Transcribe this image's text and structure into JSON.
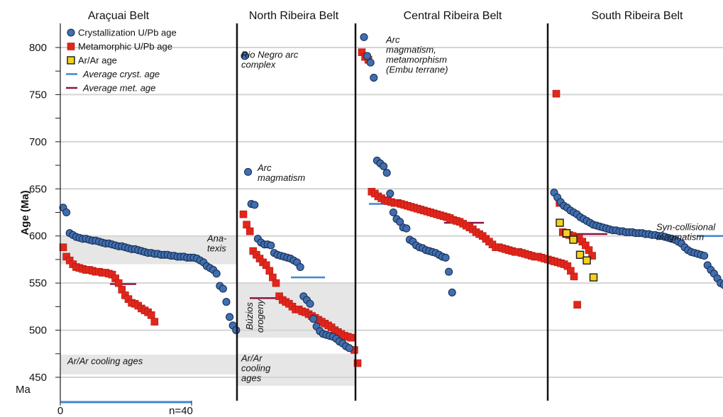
{
  "chart_data": {
    "type": "scatter",
    "ylabel": "Age (Ma)",
    "y_unit_label": "Ma",
    "ylim": [
      440,
      825
    ],
    "yticks": [
      450,
      500,
      550,
      600,
      650,
      700,
      750,
      800
    ],
    "count_axis_labels": [
      "0",
      "n=40"
    ],
    "colors": {
      "crystallization": "#3f6fb0",
      "metamorphic": "#e2261c",
      "arar": "#f2d21d",
      "avg_cryst": "#3f86d2",
      "avg_met": "#8a1548",
      "band": "#e6e6e6"
    },
    "legend": [
      {
        "key": "crystallization",
        "label": "Crystallization U/Pb age"
      },
      {
        "key": "metamorphic",
        "label": "Metamorphic U/Pb age"
      },
      {
        "key": "arar",
        "label": "Ar/Ar age"
      },
      {
        "key": "avg_cryst",
        "label": "Average cryst. age"
      },
      {
        "key": "avg_met",
        "label": "Average met. age"
      }
    ],
    "belts": [
      {
        "name": "Araçuai Belt",
        "bands": [
          [
            570,
            600
          ],
          [
            453,
            474
          ]
        ],
        "annotations": [
          {
            "lines": [
              "Ana-",
              "texis"
            ],
            "age": 594
          },
          {
            "lines": [
              "Ar/Ar cooling ages"
            ],
            "age": 464
          }
        ],
        "crystallization": [
          630,
          625,
          603,
          601,
          599,
          598,
          597,
          597,
          596,
          595,
          595,
          594,
          593,
          592,
          592,
          591,
          590,
          589,
          589,
          588,
          587,
          586,
          586,
          585,
          584,
          583,
          582,
          582,
          581,
          581,
          580,
          580,
          580,
          579,
          579,
          578,
          578,
          578,
          577,
          577,
          577,
          576,
          574,
          572,
          568,
          566,
          564,
          560,
          547,
          544,
          530,
          514,
          505,
          500
        ],
        "metamorphic": [
          588,
          578,
          574,
          570,
          567,
          566,
          565,
          564,
          564,
          563,
          562,
          562,
          561,
          561,
          560,
          559,
          555,
          550,
          543,
          537,
          533,
          529,
          528,
          526,
          523,
          521,
          519,
          516,
          509
        ],
        "avg_cryst": 578,
        "avg_met": 549
      },
      {
        "name": "North Ribeira Belt",
        "bands": [
          [
            492,
            550
          ],
          [
            441,
            475
          ]
        ],
        "annotations": [
          {
            "lines": [
              "Rio Negro arc",
              "complex"
            ],
            "age": 789
          },
          {
            "lines": [
              "Arc",
              "magmatism"
            ],
            "age": 669
          },
          {
            "lines": [
              "Búzios",
              "orogeny"
            ],
            "age": 515,
            "rotate": true
          },
          {
            "lines": [
              "Ar/Ar",
              "cooling",
              "ages"
            ],
            "age": 467
          }
        ],
        "crystallization": [
          791,
          668,
          634,
          633,
          597,
          593,
          591,
          591,
          590,
          582,
          580,
          579,
          578,
          577,
          576,
          574,
          572,
          567,
          536,
          532,
          528,
          512,
          504,
          499,
          496,
          495,
          494,
          493,
          491,
          488,
          486,
          483,
          481
        ],
        "metamorphic": [
          623,
          612,
          605,
          584,
          580,
          576,
          572,
          569,
          563,
          556,
          550,
          536,
          532,
          530,
          528,
          525,
          522,
          522,
          520,
          519,
          517,
          515,
          513,
          511,
          509,
          507,
          505,
          503,
          500,
          498,
          496,
          494,
          493,
          492,
          479,
          465
        ],
        "avg_cryst": 556,
        "avg_met": 534
      },
      {
        "name": "Central Ribeira Belt",
        "bands": [],
        "annotations": [
          {
            "lines": [
              "Arc",
              "magmatism,",
              "metamorphism",
              "(Embu terrane)"
            ],
            "age": 805
          }
        ],
        "crystallization": [
          811,
          791,
          784,
          768,
          680,
          677,
          674,
          667,
          645,
          625,
          618,
          615,
          609,
          608,
          596,
          594,
          590,
          588,
          587,
          585,
          584,
          583,
          582,
          580,
          578,
          577,
          562,
          540
        ],
        "metamorphic": [
          795,
          790,
          787,
          647,
          645,
          642,
          640,
          638,
          637,
          636,
          635,
          635,
          634,
          633,
          632,
          631,
          630,
          629,
          628,
          627,
          626,
          625,
          624,
          623,
          622,
          621,
          620,
          619,
          617,
          616,
          615,
          613,
          611,
          609,
          607,
          604,
          602,
          600,
          597,
          594,
          591,
          588,
          588,
          587,
          586,
          585,
          584,
          583,
          583,
          582,
          581,
          580,
          579,
          578,
          578,
          577,
          576,
          575,
          574,
          573,
          572,
          571,
          570,
          568,
          563,
          557,
          527
        ],
        "avg_cryst": 634,
        "avg_met": 614
      },
      {
        "name": "South Ribeira Belt",
        "bands": [],
        "annotations": [
          {
            "lines": [
              "Syn-collisional",
              "magmatism"
            ],
            "age": 606
          }
        ],
        "crystallization": [
          646,
          641,
          636,
          632,
          630,
          627,
          625,
          623,
          620,
          618,
          616,
          614,
          612,
          611,
          610,
          609,
          608,
          607,
          606,
          606,
          605,
          605,
          604,
          604,
          604,
          603,
          603,
          603,
          602,
          602,
          601,
          601,
          600,
          600,
          599,
          598,
          597,
          596,
          594,
          592,
          588,
          585,
          583,
          582,
          581,
          580,
          579,
          569,
          564,
          560,
          555,
          550,
          548,
          520
        ],
        "metamorphic": [
          751,
          635,
          604,
          602,
          601,
          600,
          598,
          597,
          594,
          590,
          585,
          579
        ],
        "arar": [
          614,
          603,
          596,
          580,
          574,
          556
        ],
        "avg_cryst": 600,
        "avg_met": 602
      }
    ]
  }
}
